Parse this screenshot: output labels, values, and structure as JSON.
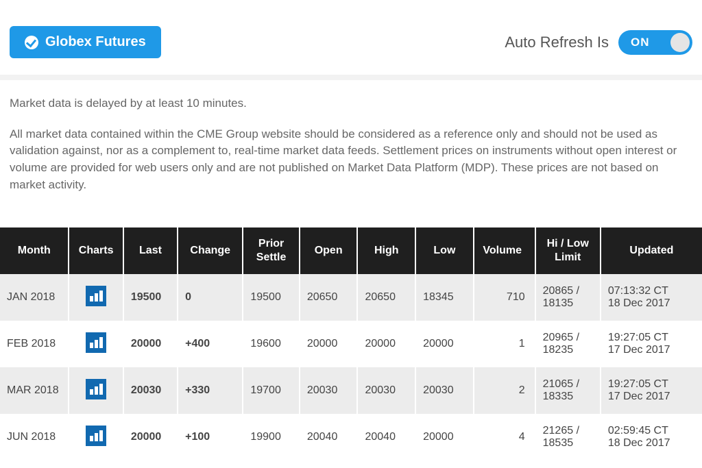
{
  "colors": {
    "primary": "#1f99e7",
    "chart_icon": "#1169b0",
    "header_bg": "#1f1f1f",
    "row_odd": "#ececec",
    "row_even": "#ffffff",
    "positive": "#1a8a1a",
    "text": "#444444",
    "muted": "#666666"
  },
  "header": {
    "globex_button_label": "Globex Futures",
    "refresh_label": "Auto Refresh Is",
    "toggle_label": "ON",
    "toggle_state": "on"
  },
  "disclaimer": {
    "p1": "Market data is delayed by at least 10 minutes.",
    "p2": "All market data contained within the CME Group website should be considered as a reference only and should not be used as validation against, nor as a complement to, real-time market data feeds. Settlement prices on instruments without open interest or volume are provided for web users only and are not published on Market Data Platform (MDP). These prices are not based on market activity."
  },
  "table": {
    "columns": {
      "month": "Month",
      "charts": "Charts",
      "last": "Last",
      "change": "Change",
      "prior_settle": "Prior Settle",
      "open": "Open",
      "high": "High",
      "low": "Low",
      "volume": "Volume",
      "limit": "Hi / Low Limit",
      "updated": "Updated"
    },
    "rows": [
      {
        "month": "JAN 2018",
        "last": "19500",
        "change": "0",
        "change_dir": "flat",
        "prior_settle": "19500",
        "open": "20650",
        "high": "20650",
        "low": "18345",
        "volume": "710",
        "limit": "20865 / 18135",
        "updated_time": "07:13:32 CT",
        "updated_date": "18 Dec 2017"
      },
      {
        "month": "FEB 2018",
        "last": "20000",
        "change": "+400",
        "change_dir": "pos",
        "prior_settle": "19600",
        "open": "20000",
        "high": "20000",
        "low": "20000",
        "volume": "1",
        "limit": "20965 / 18235",
        "updated_time": "19:27:05 CT",
        "updated_date": "17 Dec 2017"
      },
      {
        "month": "MAR 2018",
        "last": "20030",
        "change": "+330",
        "change_dir": "pos",
        "prior_settle": "19700",
        "open": "20030",
        "high": "20030",
        "low": "20030",
        "volume": "2",
        "limit": "21065 / 18335",
        "updated_time": "19:27:05 CT",
        "updated_date": "17 Dec 2017"
      },
      {
        "month": "JUN 2018",
        "last": "20000",
        "change": "+100",
        "change_dir": "pos",
        "prior_settle": "19900",
        "open": "20040",
        "high": "20040",
        "low": "20000",
        "volume": "4",
        "limit": "21265 / 18535",
        "updated_time": "02:59:45 CT",
        "updated_date": "18 Dec 2017"
      }
    ]
  }
}
